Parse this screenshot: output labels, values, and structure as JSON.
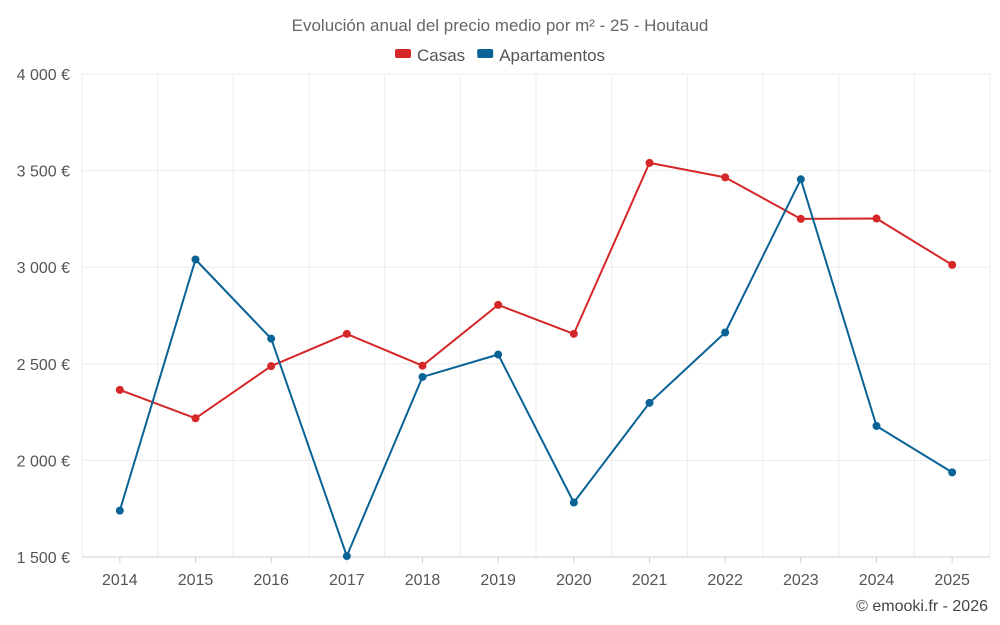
{
  "chart_data": {
    "type": "line",
    "title": "Evolución anual del precio medio por m² - 25 - Houtaud",
    "categories": [
      "2014",
      "2015",
      "2016",
      "2017",
      "2018",
      "2019",
      "2020",
      "2021",
      "2022",
      "2023",
      "2024",
      "2025"
    ],
    "series": [
      {
        "name": "Casas",
        "color": "#d62728",
        "values": [
          2365,
          2218,
          2488,
          2655,
          2490,
          2805,
          2655,
          3540,
          3465,
          3250,
          3252,
          3012
        ]
      },
      {
        "name": "Apartamentos",
        "color": "#0a6396",
        "values": [
          1740,
          3040,
          2630,
          1505,
          2432,
          2548,
          1782,
          2298,
          2662,
          3455,
          2178,
          1938
        ]
      }
    ],
    "ylim": [
      1500,
      4000
    ],
    "yticks": [
      1500,
      2000,
      2500,
      3000,
      3500,
      4000
    ],
    "ytick_labels": [
      "1 500 €",
      "2 000 €",
      "2 500 €",
      "3 000 €",
      "3 500 €",
      "4 000 €"
    ],
    "xlabel": "",
    "ylabel": "",
    "grid": true,
    "legend_position": "top-center",
    "credit": "© emooki.fr - 2026"
  }
}
